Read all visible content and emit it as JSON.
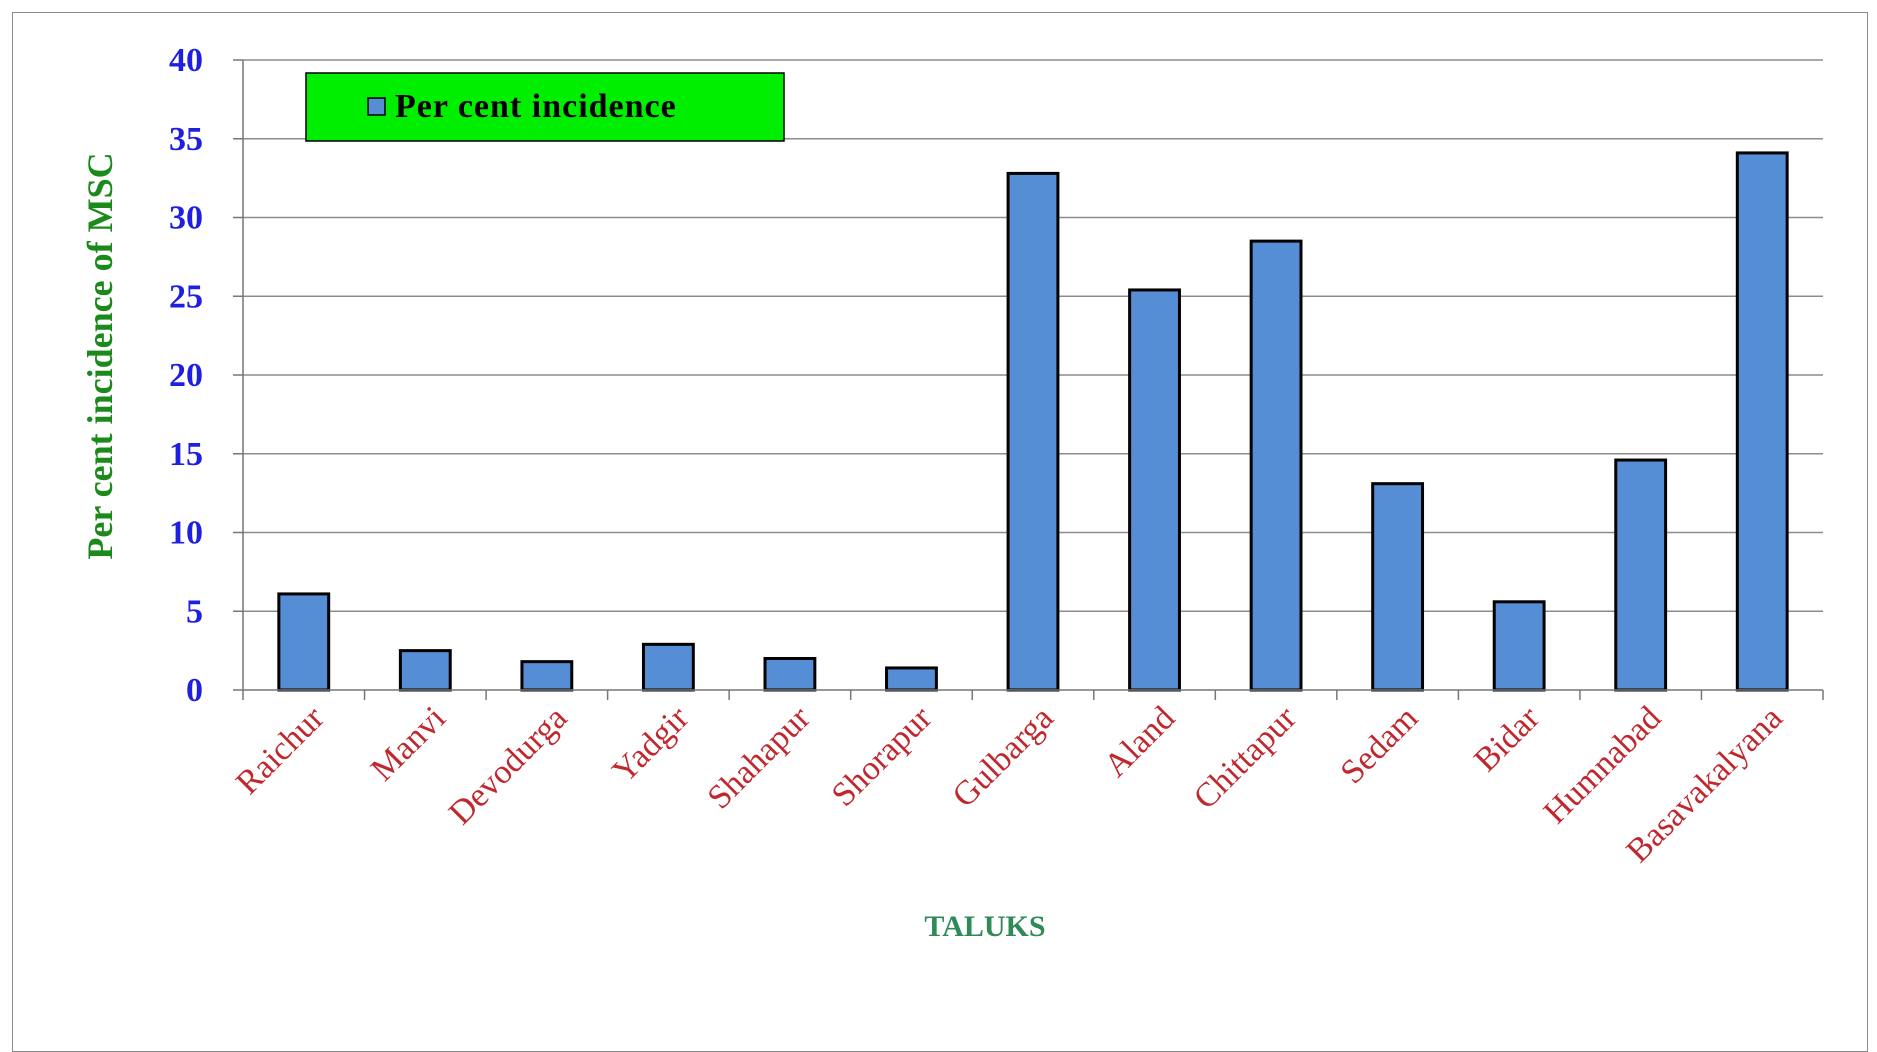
{
  "chart_data": {
    "type": "bar",
    "categories": [
      "Raichur",
      "Manvi",
      "Devodurga",
      "Yadgir",
      "Shahapur",
      "Shorapur",
      "Gulbarga",
      "Aland",
      "Chittapur",
      "Sedam",
      "Bidar",
      "Humnabad",
      "Basavakalyana"
    ],
    "series": [
      {
        "name": "Per cent incidence",
        "values": [
          6.1,
          2.5,
          1.8,
          2.9,
          2.0,
          1.4,
          32.8,
          25.4,
          28.5,
          13.1,
          5.6,
          14.6,
          34.1
        ],
        "color": "#558ed5"
      }
    ],
    "xlabel": "TALUKS",
    "ylabel": "Per cent incidence of MSC",
    "ylim": [
      0,
      40
    ],
    "yticks": [
      0,
      5,
      10,
      15,
      20,
      25,
      30,
      35,
      40
    ],
    "grid": true,
    "legend_position": "top-left",
    "colors": {
      "ytick": "#1f1fe0",
      "xtick": "#c0282e",
      "ylabel": "#1b8a1b",
      "xlabel": "#2e8b57",
      "legend_bg": "#00ee00",
      "bar_fill": "#558ed5",
      "gridline": "#8c8c8c"
    }
  }
}
